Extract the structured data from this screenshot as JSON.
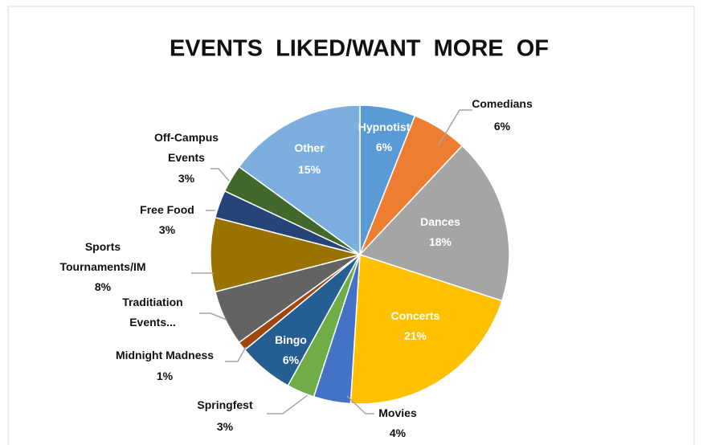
{
  "chart_data": {
    "type": "pie",
    "title": "EVENTS  LIKED/WANT  MORE  OF",
    "categories": [
      "Hypnotist",
      "Comedians",
      "Dances",
      "Concerts",
      "Movies",
      "Springfest",
      "Bingo",
      "Midnight Madness",
      "Traditiation Events...",
      "Sports Tournaments/IM",
      "Free Food",
      "Off-Campus Events",
      "Other"
    ],
    "values": [
      6,
      6,
      18,
      21,
      4,
      3,
      6,
      1,
      6,
      8,
      3,
      3,
      15
    ],
    "value_labels": [
      "6%",
      "6%",
      "18%",
      "21%",
      "4%",
      "3%",
      "6%",
      "1%",
      null,
      "8%",
      "3%",
      "3%",
      "15%"
    ],
    "colors": [
      "#5b9bd5",
      "#ed7d31",
      "#a5a5a5",
      "#ffc000",
      "#4472c4",
      "#70ad47",
      "#255e91",
      "#9e480e",
      "#636363",
      "#997300",
      "#264478",
      "#43682b",
      "#7cafdd"
    ]
  }
}
